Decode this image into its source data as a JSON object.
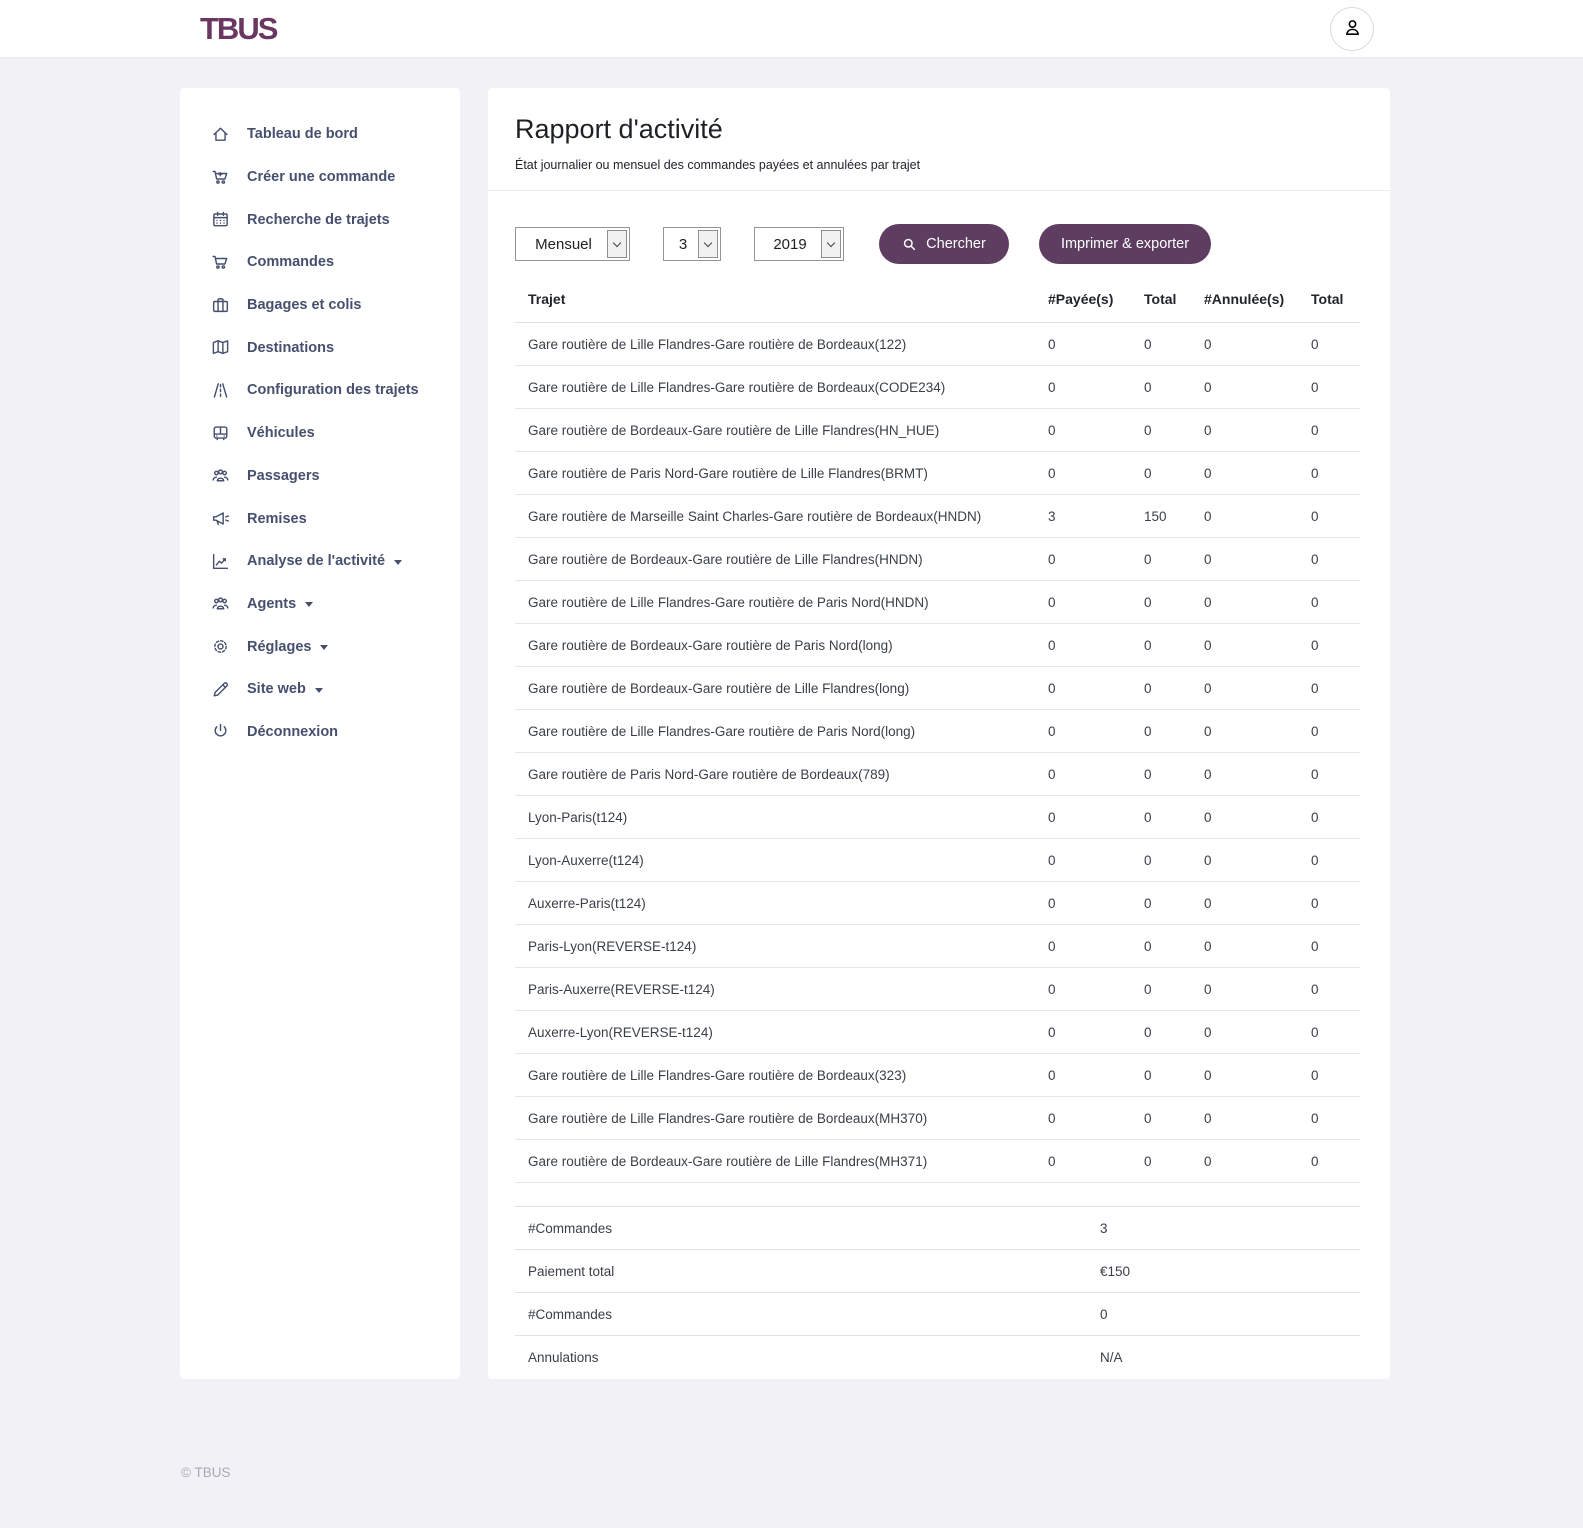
{
  "topbar": {
    "logo": "TBUS"
  },
  "sidebar": {
    "items": [
      {
        "label": "Tableau de bord",
        "icon": "home-icon",
        "caret": false
      },
      {
        "label": "Créer une commande",
        "icon": "cart-plus-icon",
        "caret": false
      },
      {
        "label": "Recherche de trajets",
        "icon": "calendar-icon",
        "caret": false
      },
      {
        "label": "Commandes",
        "icon": "cart-icon",
        "caret": false
      },
      {
        "label": "Bagages et colis",
        "icon": "briefcase-icon",
        "caret": false
      },
      {
        "label": "Destinations",
        "icon": "map-icon",
        "caret": false
      },
      {
        "label": "Configuration des trajets",
        "icon": "road-icon",
        "caret": false
      },
      {
        "label": "Véhicules",
        "icon": "bus-icon",
        "caret": false
      },
      {
        "label": "Passagers",
        "icon": "users-icon",
        "caret": false
      },
      {
        "label": "Remises",
        "icon": "megaphone-icon",
        "caret": false
      },
      {
        "label": "Analyse de l'activité",
        "icon": "chart-icon",
        "caret": true
      },
      {
        "label": "Agents",
        "icon": "users-icon",
        "caret": true
      },
      {
        "label": "Réglages",
        "icon": "gear-icon",
        "caret": true
      },
      {
        "label": "Site web",
        "icon": "pencil-icon",
        "caret": true
      },
      {
        "label": "Déconnexion",
        "icon": "power-icon",
        "caret": false
      }
    ]
  },
  "report": {
    "title": "Rapport d'activité",
    "subtitle": "État journalier ou mensuel des commandes payées et annulées par trajet",
    "filters": {
      "period": "Mensuel",
      "month": "3",
      "year": "2019"
    },
    "actions": {
      "search": "Chercher",
      "export": "Imprimer & exporter"
    },
    "table": {
      "headers": [
        "Trajet",
        "#Payée(s)",
        "Total",
        "#Annulée(s)",
        "Total"
      ],
      "rows": [
        [
          "Gare routière de Lille Flandres-Gare routière de Bordeaux(122)",
          "0",
          "0",
          "0",
          "0"
        ],
        [
          "Gare routière de Lille Flandres-Gare routière de Bordeaux(CODE234)",
          "0",
          "0",
          "0",
          "0"
        ],
        [
          "Gare routière de Bordeaux-Gare routière de Lille Flandres(HN_HUE)",
          "0",
          "0",
          "0",
          "0"
        ],
        [
          "Gare routière de Paris Nord-Gare routière de Lille Flandres(BRMT)",
          "0",
          "0",
          "0",
          "0"
        ],
        [
          "Gare routière de Marseille Saint Charles-Gare routière de Bordeaux(HNDN)",
          "3",
          "150",
          "0",
          "0"
        ],
        [
          "Gare routière de Bordeaux-Gare routière de Lille Flandres(HNDN)",
          "0",
          "0",
          "0",
          "0"
        ],
        [
          "Gare routière de Lille Flandres-Gare routière de Paris Nord(HNDN)",
          "0",
          "0",
          "0",
          "0"
        ],
        [
          "Gare routière de Bordeaux-Gare routière de Paris Nord(long)",
          "0",
          "0",
          "0",
          "0"
        ],
        [
          "Gare routière de Bordeaux-Gare routière de Lille Flandres(long)",
          "0",
          "0",
          "0",
          "0"
        ],
        [
          "Gare routière de Lille Flandres-Gare routière de Paris Nord(long)",
          "0",
          "0",
          "0",
          "0"
        ],
        [
          "Gare routière de Paris Nord-Gare routière de Bordeaux(789)",
          "0",
          "0",
          "0",
          "0"
        ],
        [
          "Lyon-Paris(t124)",
          "0",
          "0",
          "0",
          "0"
        ],
        [
          "Lyon-Auxerre(t124)",
          "0",
          "0",
          "0",
          "0"
        ],
        [
          "Auxerre-Paris(t124)",
          "0",
          "0",
          "0",
          "0"
        ],
        [
          "Paris-Lyon(REVERSE-t124)",
          "0",
          "0",
          "0",
          "0"
        ],
        [
          "Paris-Auxerre(REVERSE-t124)",
          "0",
          "0",
          "0",
          "0"
        ],
        [
          "Auxerre-Lyon(REVERSE-t124)",
          "0",
          "0",
          "0",
          "0"
        ],
        [
          "Gare routière de Lille Flandres-Gare routière de Bordeaux(323)",
          "0",
          "0",
          "0",
          "0"
        ],
        [
          "Gare routière de Lille Flandres-Gare routière de Bordeaux(MH370)",
          "0",
          "0",
          "0",
          "0"
        ],
        [
          "Gare routière de Bordeaux-Gare routière de Lille Flandres(MH371)",
          "0",
          "0",
          "0",
          "0"
        ]
      ]
    },
    "summary": [
      {
        "label": "#Commandes",
        "value": "3"
      },
      {
        "label": "Paiement total",
        "value": "€150"
      },
      {
        "label": "#Commandes",
        "value": "0"
      },
      {
        "label": "Annulations",
        "value": "N/A"
      }
    ]
  },
  "footer": {
    "copyright": "© TBUS"
  },
  "colors": {
    "accent": "#5d3d60",
    "brand": "#6a3662",
    "sidebar_text": "#474f6f",
    "background": "#f2f1f6"
  }
}
